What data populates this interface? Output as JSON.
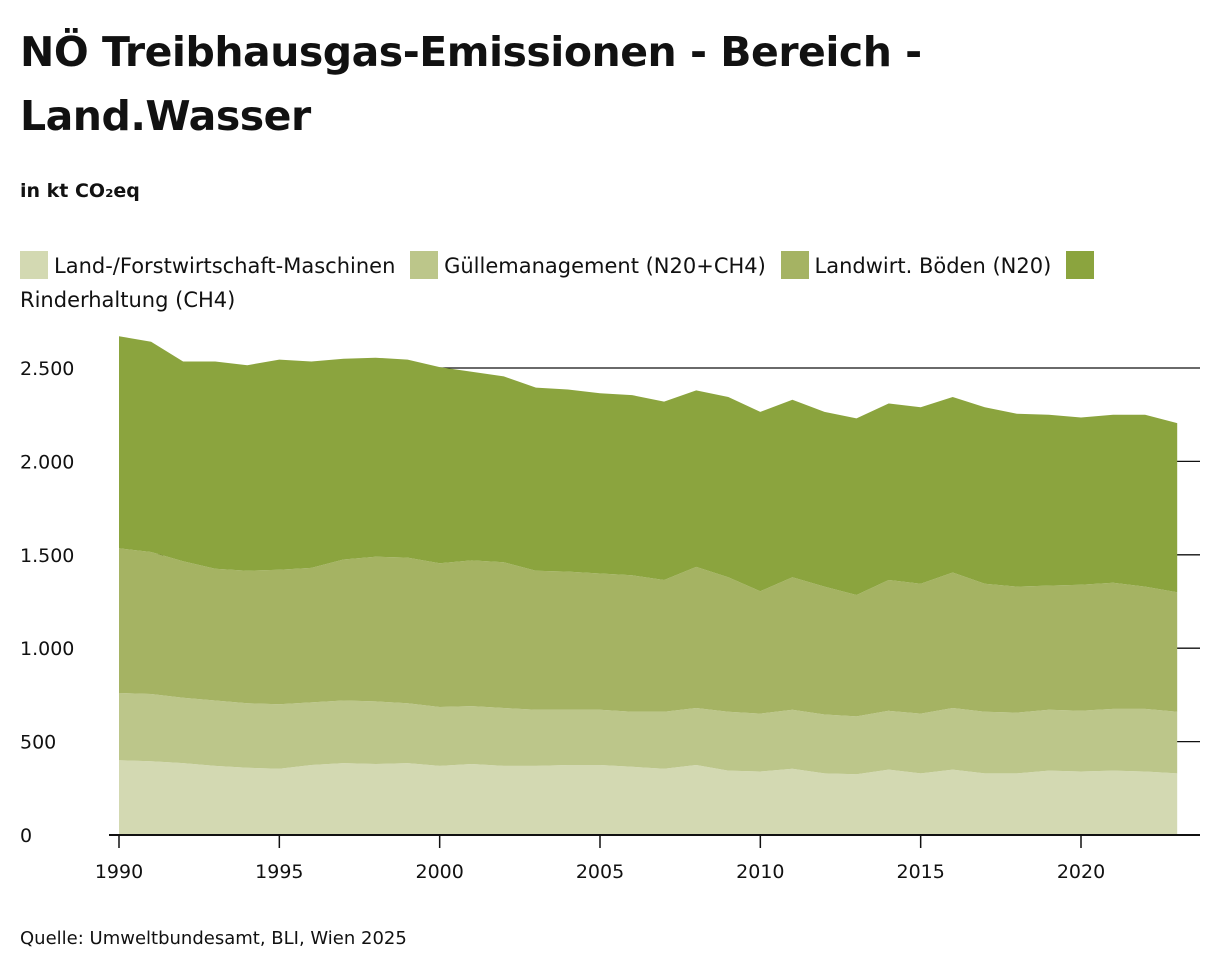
{
  "chart_data": {
    "type": "area",
    "stacked": true,
    "title": "NÖ Treibhausgas-Emissionen - Bereich - Land.Wasser",
    "subtitle": "in kt CO₂eq",
    "xlabel": "",
    "ylabel": "in kt CO₂eq",
    "x": [
      1990,
      1991,
      1992,
      1993,
      1994,
      1995,
      1996,
      1997,
      1998,
      1999,
      2000,
      2001,
      2002,
      2003,
      2004,
      2005,
      2006,
      2007,
      2008,
      2009,
      2010,
      2011,
      2012,
      2013,
      2014,
      2015,
      2016,
      2017,
      2018,
      2019,
      2020,
      2021,
      2022,
      2023
    ],
    "ylim": [
      0,
      2700
    ],
    "xlim": [
      1990,
      2023.5
    ],
    "y_ticks": [
      0,
      500,
      1000,
      1500,
      2000,
      2500
    ],
    "y_tick_labels": [
      "0",
      "500",
      "1.000",
      "1.500",
      "2.000",
      "2.500"
    ],
    "x_ticks": [
      1990,
      1995,
      2000,
      2005,
      2010,
      2015,
      2020
    ],
    "x_tick_labels": [
      "1990",
      "1995",
      "2000",
      "2005",
      "2010",
      "2015",
      "2020"
    ],
    "grid": "horizontal",
    "legend_position": "top",
    "series": [
      {
        "name": "Land-/Forstwirtschaft-Maschinen",
        "color": "#d3d9b2",
        "values": [
          400,
          395,
          385,
          370,
          360,
          355,
          375,
          385,
          380,
          385,
          370,
          380,
          370,
          370,
          375,
          375,
          365,
          355,
          375,
          345,
          340,
          355,
          330,
          325,
          350,
          330,
          350,
          330,
          330,
          345,
          340,
          345,
          340,
          330
        ]
      },
      {
        "name": "Güllemanagement (N20+CH4)",
        "color": "#bcc68a",
        "values": [
          360,
          360,
          350,
          350,
          345,
          345,
          335,
          335,
          335,
          320,
          315,
          310,
          310,
          300,
          295,
          295,
          295,
          305,
          305,
          315,
          310,
          315,
          315,
          310,
          315,
          320,
          330,
          330,
          325,
          325,
          325,
          330,
          335,
          330
        ]
      },
      {
        "name": "Landwirt. Böden (N20)",
        "color": "#a5b363",
        "values": [
          775,
          760,
          730,
          705,
          710,
          720,
          720,
          755,
          775,
          780,
          770,
          780,
          780,
          745,
          740,
          730,
          730,
          705,
          755,
          720,
          655,
          710,
          685,
          650,
          700,
          695,
          725,
          685,
          675,
          665,
          675,
          675,
          655,
          640
        ]
      },
      {
        "name": "Rinderhaltung (CH4)",
        "color": "#8ba43e",
        "values": [
          1135,
          1125,
          1070,
          1110,
          1100,
          1125,
          1105,
          1075,
          1065,
          1060,
          1050,
          1010,
          995,
          980,
          975,
          965,
          965,
          955,
          945,
          965,
          960,
          950,
          935,
          945,
          945,
          945,
          940,
          945,
          925,
          915,
          895,
          900,
          920,
          905
        ]
      }
    ],
    "source": "Quelle: Umweltbundesamt, BLI, Wien 2025"
  }
}
